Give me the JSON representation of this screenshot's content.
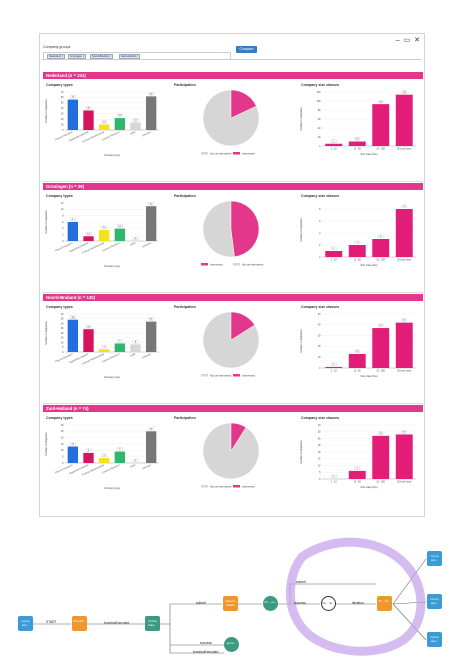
{
  "window": {
    "controls": "– ▭ ✕"
  },
  "filter": {
    "label": "Company groups",
    "tags": [
      "Nederland ×",
      "Groningen ×",
      "Noord-Brabant ×",
      "Zuid-Holland ×"
    ],
    "compare_label": "Compare"
  },
  "chart_titles": {
    "types": "Company types",
    "part": "Participation",
    "size": "Company size classes"
  },
  "type_categories": [
    "Physical Nanotech",
    "Supporting Industrial",
    "Contract Manufacturing",
    "Contract Research",
    "OEM",
    "Unknown"
  ],
  "type_colors": [
    "#1f6fe0",
    "#d6135f",
    "#f5e21b",
    "#2fb86d",
    "#d6d6d6",
    "#777777"
  ],
  "type_xlabel": "Company type",
  "type_ylabel": "Number of companies",
  "size_categories": [
    "1 - 10",
    "11 - 50",
    "51 - 250",
    "251 and more"
  ],
  "size_xlabel": "Size class (Fte)",
  "size_ylabel": "Number of companies",
  "legend": {
    "not": "Not yet interviewed",
    "yes": "Interviewed"
  },
  "part_colors": {
    "not": "#d6d6d6",
    "yes": "#e3378c"
  },
  "sections": [
    {
      "title": "Nederland (n = 234)",
      "types": [
        56,
        36,
        10,
        22,
        14,
        62
      ],
      "types_ylim": [
        0,
        70
      ],
      "types_ticks": [
        0,
        10,
        20,
        30,
        40,
        50,
        60,
        70
      ],
      "interviewed_share": 0.18,
      "size": [
        5,
        10,
        93,
        114
      ],
      "size_ylim": [
        0,
        120
      ],
      "size_ticks": [
        0,
        20,
        40,
        60,
        80,
        100,
        120
      ]
    },
    {
      "title": "Groningen (n = 29)",
      "types": [
        6,
        1.5,
        3.5,
        3.9,
        0,
        11
      ],
      "types_ylim": [
        0,
        12
      ],
      "types_ticks": [
        0,
        2,
        4,
        6,
        8,
        10,
        12
      ],
      "interviewed_share": 0.48,
      "size": [
        1,
        2,
        3,
        8
      ],
      "size_ylim": [
        0,
        9
      ],
      "size_ticks": [
        0,
        2,
        4,
        6,
        8
      ],
      "legend_order": "yes-first"
    },
    {
      "title": "Noord-Brabant (n = 130)",
      "types": [
        34,
        24,
        3,
        9,
        8,
        32
      ],
      "types_ylim": [
        0,
        40
      ],
      "types_ticks": [
        0,
        5,
        10,
        15,
        20,
        25,
        30,
        35,
        40
      ],
      "interviewed_share": 0.16,
      "size": [
        1,
        13,
        37,
        42
      ],
      "size_ylim": [
        0,
        50
      ],
      "size_ticks": [
        0,
        10,
        20,
        30,
        40,
        50
      ]
    },
    {
      "title": "Zuid-Holland (n = 74)",
      "types": [
        13,
        8,
        4,
        9,
        0,
        25
      ],
      "types_ylim": [
        0,
        30
      ],
      "types_ticks": [
        0,
        5,
        10,
        15,
        20,
        25,
        30
      ],
      "interviewed_share": 0.09,
      "size": [
        0,
        6,
        32,
        33
      ],
      "size_ylim": [
        0,
        40
      ],
      "size_ticks": [
        0,
        5,
        10,
        15,
        20,
        25,
        30,
        35,
        40
      ]
    }
  ],
  "flow": {
    "nodes": {
      "comp": "Comp any...",
      "check": "CheckR...",
      "prob": "Proba bility...",
      "deter": "Determ ination",
      "ch": "Ch... ev...",
      "ot": "Ot... no...",
      "gui": "gui te...",
      "fi": "Fl... ch...",
      "out1": "Comp any...",
      "out2": "Comp any...",
      "out3": "Comp any..."
    },
    "edges": {
      "start": "START",
      "fe1": "functionExecuted",
      "submit": "submit",
      "success": "success",
      "iteration": "iteration",
      "fe2": "functionExecuted",
      "submit2": "submit"
    }
  }
}
